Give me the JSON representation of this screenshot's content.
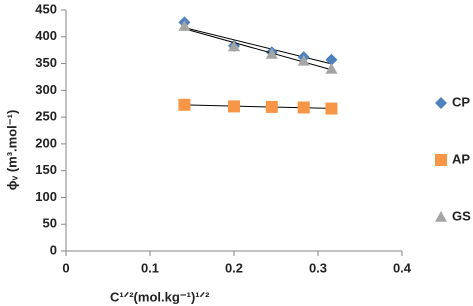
{
  "chart_data": {
    "type": "scatter",
    "x_label": "C¹ᐟ²(mol.kg⁻¹)¹ᐟ²",
    "y_label": "ϕᵥ (m³.mol⁻¹)",
    "x": [
      0.141,
      0.2,
      0.245,
      0.283,
      0.316
    ],
    "series": [
      {
        "name": "CP",
        "color": "#4f81bd",
        "marker": "diamond",
        "values": [
          427,
          383,
          371,
          362,
          357
        ]
      },
      {
        "name": "AP",
        "color": "#f79646",
        "marker": "square",
        "values": [
          273,
          270,
          269,
          268,
          266
        ]
      },
      {
        "name": "GS",
        "color": "#a5a5a5",
        "marker": "triangle",
        "values": [
          420,
          382,
          368,
          355,
          340
        ]
      }
    ],
    "xlim": [
      0,
      0.4
    ],
    "xticks": [
      0,
      0.1,
      0.2,
      0.3,
      0.4
    ],
    "ylim": [
      0,
      450
    ],
    "yticks": [
      0,
      50,
      100,
      150,
      200,
      250,
      300,
      350,
      400,
      450
    ],
    "trendline": true,
    "grid": false,
    "legend": "right"
  }
}
